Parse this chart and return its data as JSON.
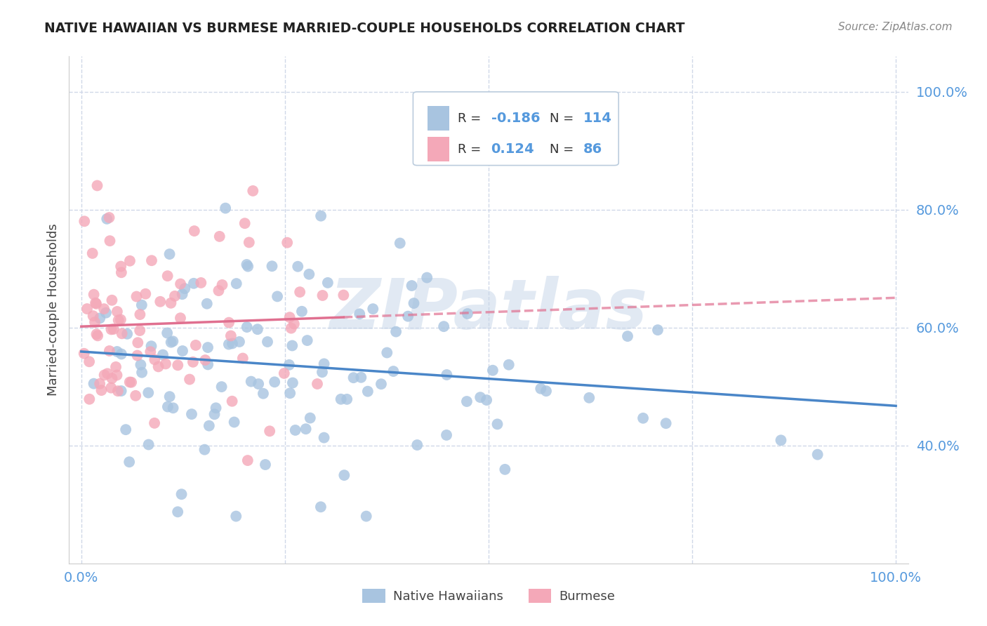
{
  "title": "NATIVE HAWAIIAN VS BURMESE MARRIED-COUPLE HOUSEHOLDS CORRELATION CHART",
  "source": "Source: ZipAtlas.com",
  "ylabel": "Married-couple Households",
  "blue_color": "#a8c4e0",
  "pink_color": "#f4a8b8",
  "blue_line_color": "#4a86c8",
  "pink_line_color": "#e07090",
  "background_color": "#ffffff",
  "watermark": "ZIPatlas",
  "grid_color": "#d0d8e8",
  "tick_color": "#5599dd",
  "title_color": "#222222",
  "source_color": "#888888",
  "ylabel_color": "#444444",
  "legend_blue_r": "-0.186",
  "legend_blue_n": "114",
  "legend_pink_r": "0.124",
  "legend_pink_n": "86",
  "xlim": [
    -0.015,
    1.015
  ],
  "ylim": [
    0.2,
    1.06
  ],
  "yticks": [
    0.4,
    0.6,
    0.8,
    1.0
  ],
  "ytick_labels": [
    "40.0%",
    "60.0%",
    "80.0%",
    "100.0%"
  ],
  "xticks": [
    0.0,
    1.0
  ],
  "xtick_labels": [
    "0.0%",
    "100.0%"
  ],
  "scatter_size": 130
}
